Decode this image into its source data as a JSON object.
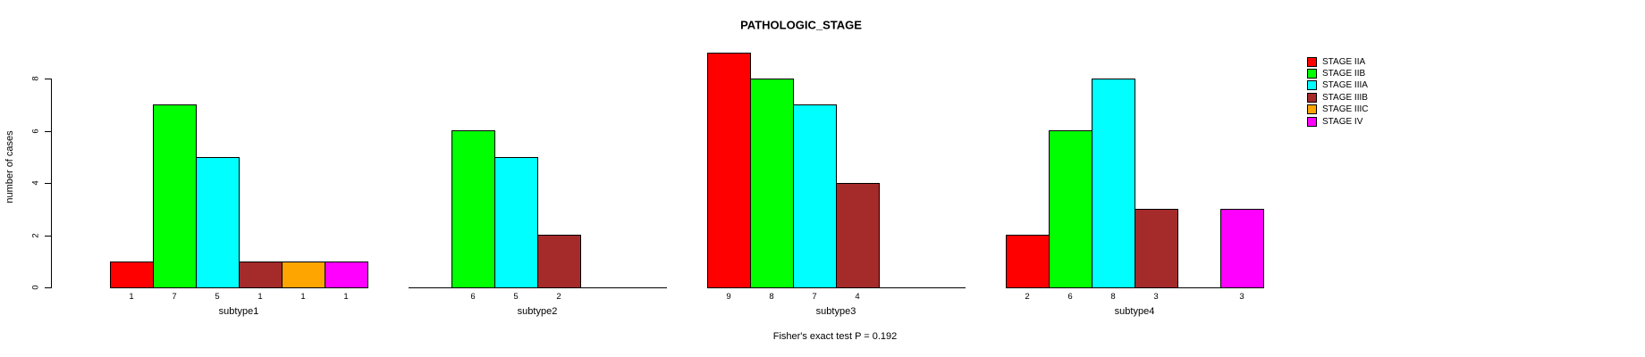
{
  "title": "PATHOLOGIC_STAGE",
  "subtitle": "Fisher's exact test P = 0.192",
  "ylabel": "number of cases",
  "chart_data": {
    "type": "bar",
    "title": "PATHOLOGIC_STAGE",
    "ylabel": "number of cases",
    "xlabel": "",
    "ylim": [
      0,
      9
    ],
    "yticks": [
      0,
      2,
      4,
      6,
      8
    ],
    "grid": false,
    "legend_position": "right",
    "annotation": "Fisher's exact test P = 0.192",
    "categories": [
      "subtype1",
      "subtype2",
      "subtype3",
      "subtype4"
    ],
    "series": [
      {
        "name": "STAGE IIA",
        "color": "#FF0000",
        "values": [
          1,
          0,
          9,
          2
        ]
      },
      {
        "name": "STAGE IIB",
        "color": "#00FF00",
        "values": [
          7,
          6,
          8,
          6
        ]
      },
      {
        "name": "STAGE IIIA",
        "color": "#00FFFF",
        "values": [
          5,
          5,
          7,
          8
        ]
      },
      {
        "name": "STAGE IIIB",
        "color": "#A52A2A",
        "values": [
          1,
          2,
          4,
          3
        ]
      },
      {
        "name": "STAGE IIIC",
        "color": "#FFA500",
        "values": [
          1,
          0,
          0,
          0
        ]
      },
      {
        "name": "STAGE IV",
        "color": "#FF00FF",
        "values": [
          1,
          0,
          0,
          3
        ]
      }
    ],
    "bar_value_labels_shown_for_nonzero_bars": true
  },
  "legend": {
    "items": [
      {
        "label": "STAGE IIA",
        "color": "#FF0000"
      },
      {
        "label": "STAGE IIB",
        "color": "#00FF00"
      },
      {
        "label": "STAGE IIIA",
        "color": "#00FFFF"
      },
      {
        "label": "STAGE IIIB",
        "color": "#A52A2A"
      },
      {
        "label": "STAGE IIIC",
        "color": "#FFA500"
      },
      {
        "label": "STAGE IV",
        "color": "#FF00FF"
      }
    ]
  }
}
